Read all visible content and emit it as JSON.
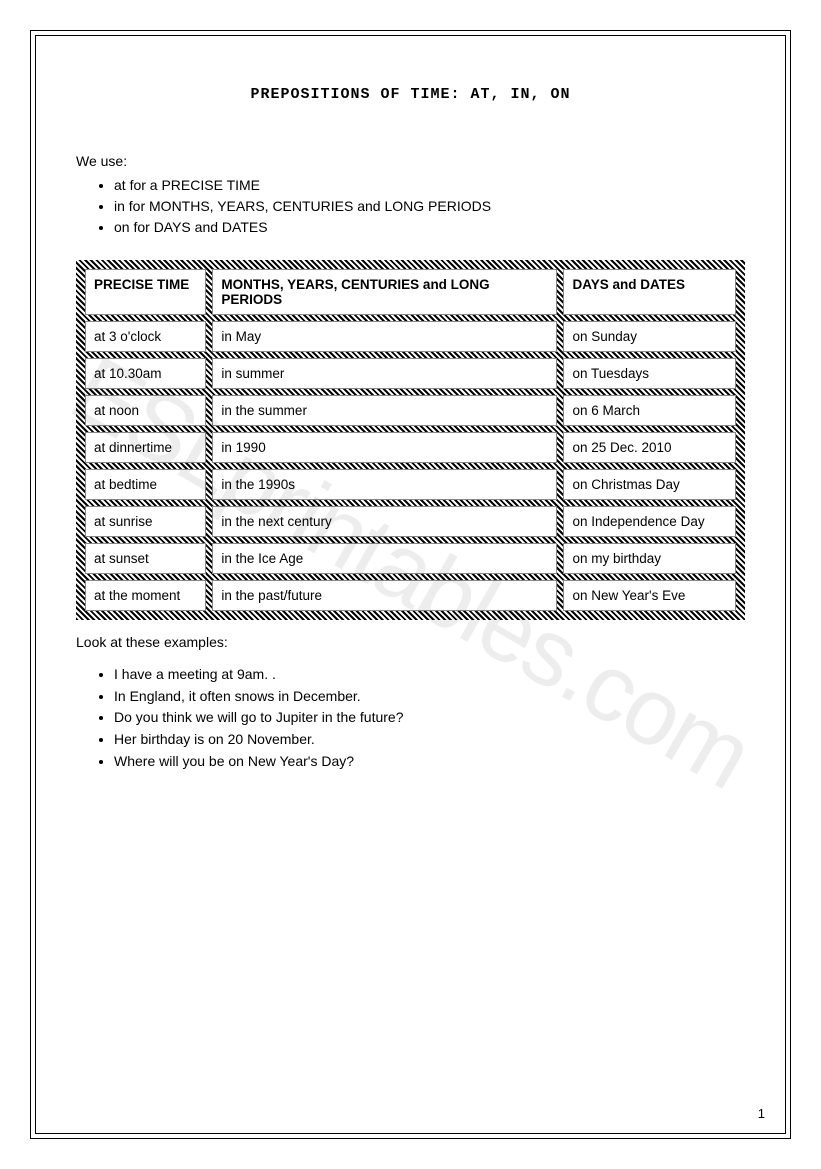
{
  "title": "PREPOSITIONS OF TIME: AT, IN, ON",
  "intro": "We use:",
  "rules": [
    "at for a PRECISE TIME",
    "in for MONTHS, YEARS, CENTURIES and LONG PERIODS",
    "on for DAYS and DATES"
  ],
  "table": {
    "headers": [
      "PRECISE TIME",
      "MONTHS, YEARS, CENTURIES and LONG PERIODS",
      "DAYS and DATES"
    ],
    "rows": [
      [
        "at 3 o'clock",
        "in May",
        "on Sunday"
      ],
      [
        "at 10.30am",
        "in summer",
        "on Tuesdays"
      ],
      [
        "at noon",
        "in the summer",
        "on 6 March"
      ],
      [
        "at dinnertime",
        "in 1990",
        "on 25 Dec. 2010"
      ],
      [
        "at bedtime",
        "in the 1990s",
        "on Christmas Day"
      ],
      [
        "at sunrise",
        "in the next century",
        "on Independence Day"
      ],
      [
        "at sunset",
        "in the Ice Age",
        "on my birthday"
      ],
      [
        "at the moment",
        "in the past/future",
        "on New Year's Eve"
      ]
    ],
    "col_widths": [
      "19%",
      "54%",
      "27%"
    ],
    "border_pattern_color": "#000000",
    "cell_bg": "#ffffff",
    "cell_border": "#888888",
    "font_size": 13.5
  },
  "examples_intro": "Look at these examples:",
  "examples": [
    "I have a meeting at 9am. .",
    "In England, it often snows in December.",
    "Do you think we will go to Jupiter in the future?",
    "Her birthday is on 20 November.",
    "Where will you be on New Year's Day?"
  ],
  "page_number": "1",
  "watermark": "ESLprintables.com",
  "colors": {
    "text": "#000000",
    "background": "#ffffff",
    "watermark": "rgba(0,0,0,0.07)"
  },
  "typography": {
    "title_font": "Courier New",
    "title_size": 15,
    "body_font": "Verdana",
    "body_size": 14
  }
}
